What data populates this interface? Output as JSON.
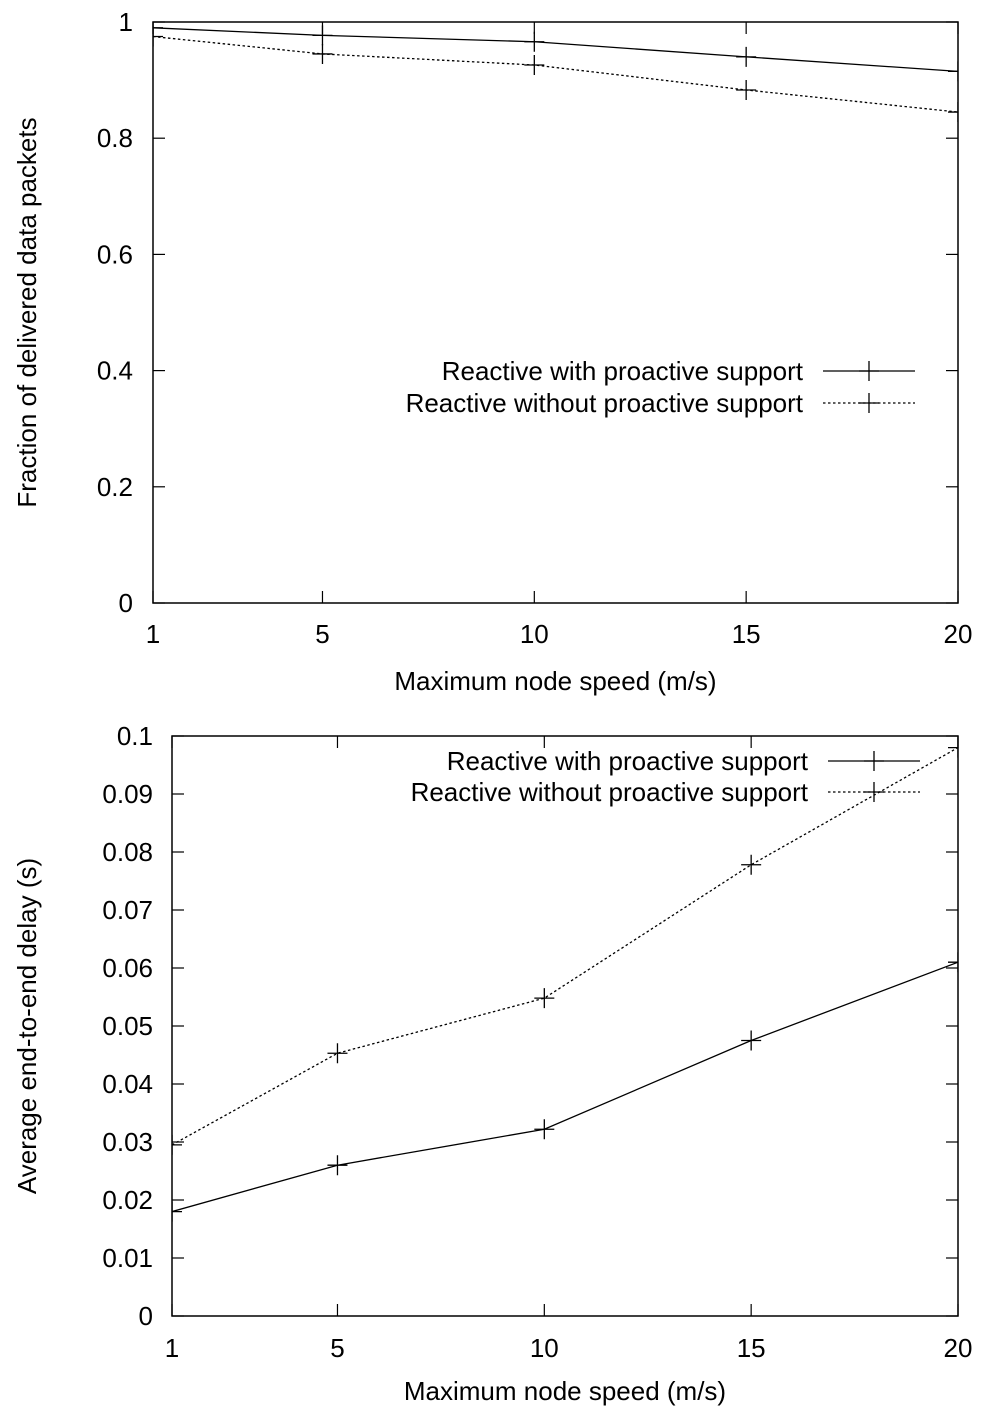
{
  "chart_data": [
    {
      "type": "line",
      "title": "",
      "xlabel": "Maximum node speed (m/s)",
      "ylabel": "Fraction of delivered data packets",
      "x": [
        1,
        5,
        10,
        15,
        20
      ],
      "xlim": [
        1,
        20
      ],
      "ylim": [
        0,
        1
      ],
      "xticks": [
        "1",
        "5",
        "10",
        "15",
        "20"
      ],
      "yticks": [
        "0",
        "0.2",
        "0.4",
        "0.6",
        "0.8",
        "1"
      ],
      "grid": false,
      "legend_position": "center-right",
      "series": [
        {
          "name": "Reactive with proactive support",
          "style": "solid",
          "values": [
            0.99,
            0.977,
            0.966,
            0.94,
            0.915
          ]
        },
        {
          "name": "Reactive without proactive support",
          "style": "dotted",
          "values": [
            0.975,
            0.945,
            0.926,
            0.883,
            0.845
          ]
        }
      ]
    },
    {
      "type": "line",
      "title": "",
      "xlabel": "Maximum node speed (m/s)",
      "ylabel": "Average end-to-end delay (s)",
      "x": [
        1,
        5,
        10,
        15,
        20
      ],
      "xlim": [
        1,
        20
      ],
      "ylim": [
        0,
        0.1
      ],
      "xticks": [
        "1",
        "5",
        "10",
        "15",
        "20"
      ],
      "yticks": [
        "0",
        "0.01",
        "0.02",
        "0.03",
        "0.04",
        "0.05",
        "0.06",
        "0.07",
        "0.08",
        "0.09",
        "0.1"
      ],
      "grid": false,
      "legend_position": "top-right",
      "series": [
        {
          "name": "Reactive with proactive support",
          "style": "solid",
          "values": [
            0.018,
            0.026,
            0.0322,
            0.0475,
            0.061
          ]
        },
        {
          "name": "Reactive without proactive support",
          "style": "dotted",
          "values": [
            0.0295,
            0.0453,
            0.0548,
            0.0778,
            0.098
          ]
        }
      ]
    }
  ]
}
